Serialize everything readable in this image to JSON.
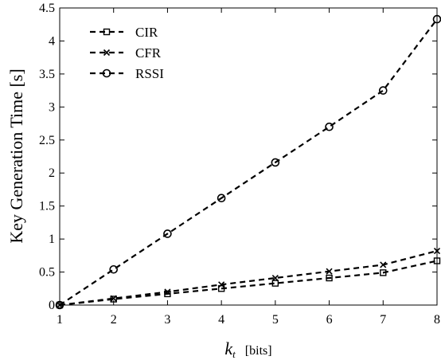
{
  "chart_data": {
    "type": "line",
    "title": "",
    "xlabel": {
      "main": "k",
      "sub": "t",
      "unit": "[bits]"
    },
    "ylabel": "Key Generation Time  [s]",
    "xlim": [
      1,
      8
    ],
    "ylim": [
      0,
      4.5
    ],
    "x_ticks": [
      "1",
      "2",
      "3",
      "4",
      "5",
      "6",
      "7",
      "8"
    ],
    "y_ticks": [
      "0",
      "0.5",
      "1",
      "1.5",
      "2",
      "2.5",
      "3",
      "3.5",
      "4",
      "4.5"
    ],
    "grid": false,
    "legend_position": "top-left",
    "x": [
      1,
      2,
      3,
      4,
      5,
      6,
      7,
      8
    ],
    "series": [
      {
        "name": "CIR",
        "marker": "square",
        "color": "#000000",
        "values": [
          0,
          0.09,
          0.17,
          0.25,
          0.33,
          0.41,
          0.49,
          0.67
        ]
      },
      {
        "name": "CFR",
        "marker": "cross",
        "color": "#000000",
        "values": [
          0,
          0.1,
          0.2,
          0.31,
          0.41,
          0.51,
          0.61,
          0.82
        ]
      },
      {
        "name": "RSSI",
        "marker": "circle",
        "color": "#000000",
        "values": [
          0,
          0.54,
          1.08,
          1.62,
          2.16,
          2.7,
          3.25,
          4.33
        ]
      }
    ]
  }
}
